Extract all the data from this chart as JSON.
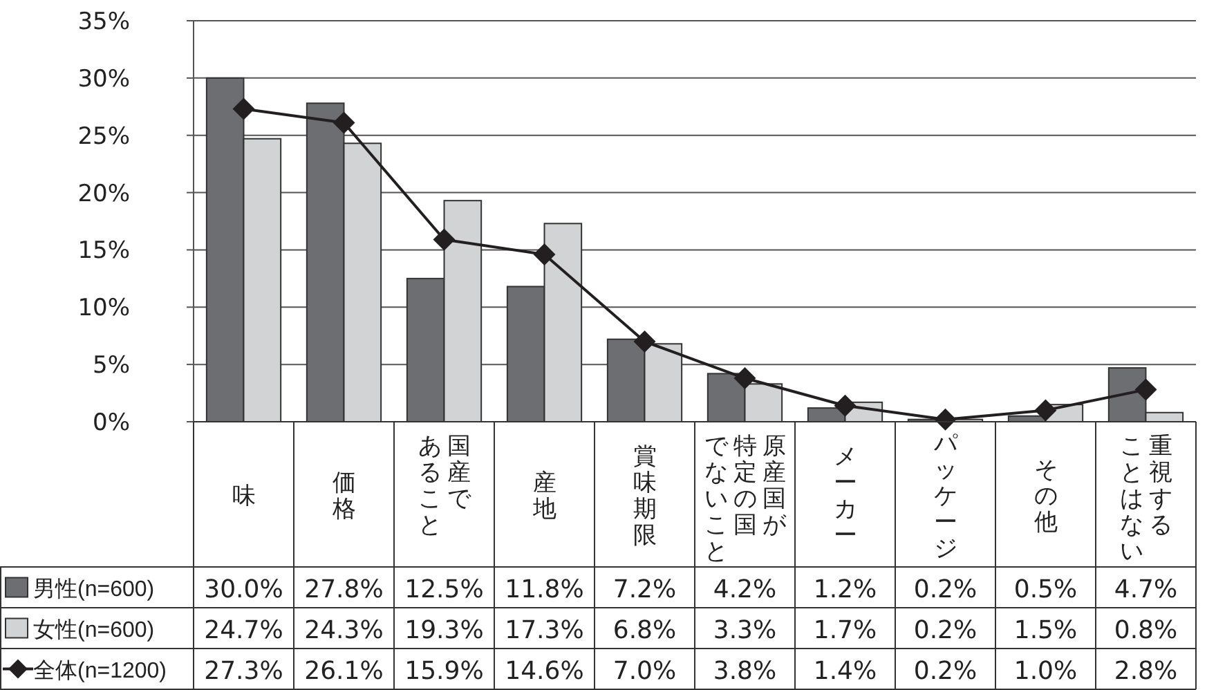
{
  "chart_data": {
    "type": "bar",
    "categories": [
      "味",
      "価格",
      "国産であること",
      "産地",
      "賞味期限",
      "原産国が特定の国でないこと",
      "メーカー",
      "パッケージ",
      "その他",
      "重視することはない"
    ],
    "series": [
      {
        "name": "男性(n=600)",
        "color": "#6d6e71",
        "values": [
          30.0,
          27.8,
          12.5,
          11.8,
          7.2,
          4.2,
          1.2,
          0.2,
          0.5,
          4.7
        ],
        "value_labels": [
          "30.0%",
          "27.8%",
          "12.5%",
          "11.8%",
          "7.2%",
          "4.2%",
          "1.2%",
          "0.2%",
          "0.5%",
          "4.7%"
        ]
      },
      {
        "name": "女性(n=600)",
        "color": "#d1d3d4",
        "values": [
          24.7,
          24.3,
          19.3,
          17.3,
          6.8,
          3.3,
          1.7,
          0.2,
          1.5,
          0.8
        ],
        "value_labels": [
          "24.7%",
          "24.3%",
          "19.3%",
          "17.3%",
          "6.8%",
          "3.3%",
          "1.7%",
          "0.2%",
          "1.5%",
          "0.8%"
        ]
      },
      {
        "name": "全体(n=1200)",
        "type": "line",
        "marker": "diamond",
        "color": "#231f20",
        "values": [
          27.3,
          26.1,
          15.9,
          14.6,
          7.0,
          3.8,
          1.4,
          0.2,
          1.0,
          2.8
        ],
        "value_labels": [
          "27.3%",
          "26.1%",
          "15.9%",
          "14.6%",
          "7.0%",
          "3.8%",
          "1.4%",
          "0.2%",
          "1.0%",
          "2.8%"
        ]
      }
    ],
    "ylim": [
      0,
      35
    ],
    "yticks": [
      {
        "value": 0,
        "label": "0%"
      },
      {
        "value": 5,
        "label": "5%"
      },
      {
        "value": 10,
        "label": "10%"
      },
      {
        "value": 15,
        "label": "15%"
      },
      {
        "value": 20,
        "label": "20%"
      },
      {
        "value": 25,
        "label": "25%"
      },
      {
        "value": 30,
        "label": "30%"
      },
      {
        "value": 35,
        "label": "35%"
      }
    ],
    "grid": "y",
    "legend": "bottom left"
  }
}
